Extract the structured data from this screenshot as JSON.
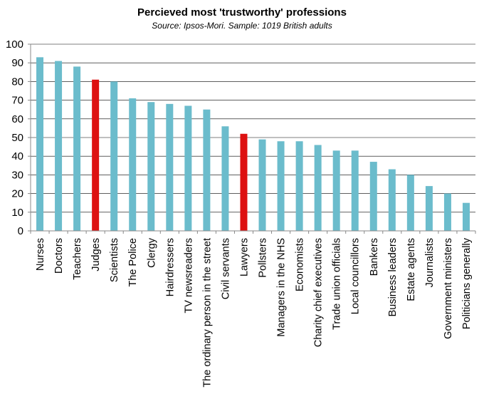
{
  "chart_data": {
    "type": "bar",
    "title": "Percieved most 'trustworthy' professions",
    "subtitle": "Source: Ipsos-Mori. Sample: 1019 British adults",
    "xlabel": "",
    "ylabel": "",
    "ylim": [
      0,
      100
    ],
    "yticks": [
      0,
      10,
      20,
      30,
      40,
      50,
      60,
      70,
      80,
      90,
      100
    ],
    "grid": true,
    "colors": {
      "default": "#6bbccc",
      "highlight": "#dd1111"
    },
    "categories": [
      "Nurses",
      "Doctors",
      "Teachers",
      "Judges",
      "Scientists",
      "The Police",
      "Clergy",
      "Hairdressers",
      "TV newsreaders",
      "The ordinary person in the street",
      "Civil servants",
      "Lawyers",
      "Pollsters",
      "Managers in the NHS",
      "Economists",
      "Charity chief executives",
      "Trade union officials",
      "Local councillors",
      "Bankers",
      "Business leaders",
      "Estate agents",
      "Journalists",
      "Government ministers",
      "Politicians generally"
    ],
    "values": [
      93,
      91,
      88,
      81,
      80,
      71,
      69,
      68,
      67,
      65,
      56,
      52,
      49,
      48,
      48,
      46,
      43,
      43,
      37,
      33,
      30,
      24,
      20,
      15
    ],
    "highlighted": [
      "Judges",
      "Lawyers"
    ]
  }
}
